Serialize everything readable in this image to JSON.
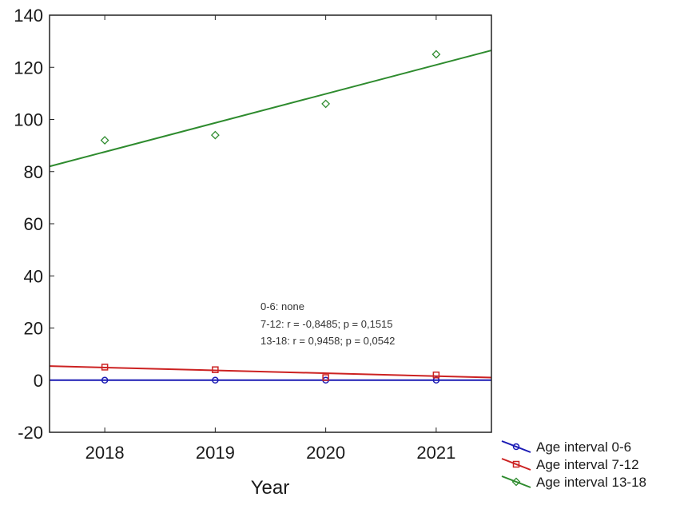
{
  "chart_data": {
    "type": "scatter",
    "xlabel": "Year",
    "ylabel": "",
    "x_ticks": [
      "2018",
      "2019",
      "2020",
      "2021"
    ],
    "y_ticks": [
      "-20",
      "0",
      "20",
      "40",
      "60",
      "80",
      "100",
      "120",
      "140"
    ],
    "xlim": [
      2017.5,
      2021.5
    ],
    "ylim": [
      -20,
      140
    ],
    "grid": false,
    "legend_position": "bottom-right outside",
    "series": [
      {
        "name": "Age interval 0-6",
        "color": "#1a1ab4",
        "marker": "circle",
        "x": [
          2018,
          2019,
          2020,
          2021
        ],
        "y": [
          0,
          0,
          0,
          0
        ],
        "fit": [
          [
            2017.5,
            0
          ],
          [
            2021.5,
            0
          ]
        ]
      },
      {
        "name": "Age interval 7-12",
        "color": "#cc2222",
        "marker": "square",
        "x": [
          2018,
          2019,
          2020,
          2021
        ],
        "y": [
          5,
          4,
          1,
          2
        ],
        "fit": [
          [
            2017.5,
            5.4
          ],
          [
            2021.5,
            1.0
          ]
        ]
      },
      {
        "name": "Age interval 13-18",
        "color": "#2e8b2e",
        "marker": "diamond",
        "x": [
          2018,
          2019,
          2020,
          2021
        ],
        "y": [
          92,
          94,
          106,
          125
        ],
        "fit": [
          [
            2017.5,
            82
          ],
          [
            2021.5,
            126.5
          ]
        ]
      }
    ],
    "annotations": [
      "0-6: none",
      "7-12:  r = -0,8485; p = 0,1515",
      "13-18:  r = 0,9458; p = 0,0542"
    ]
  }
}
